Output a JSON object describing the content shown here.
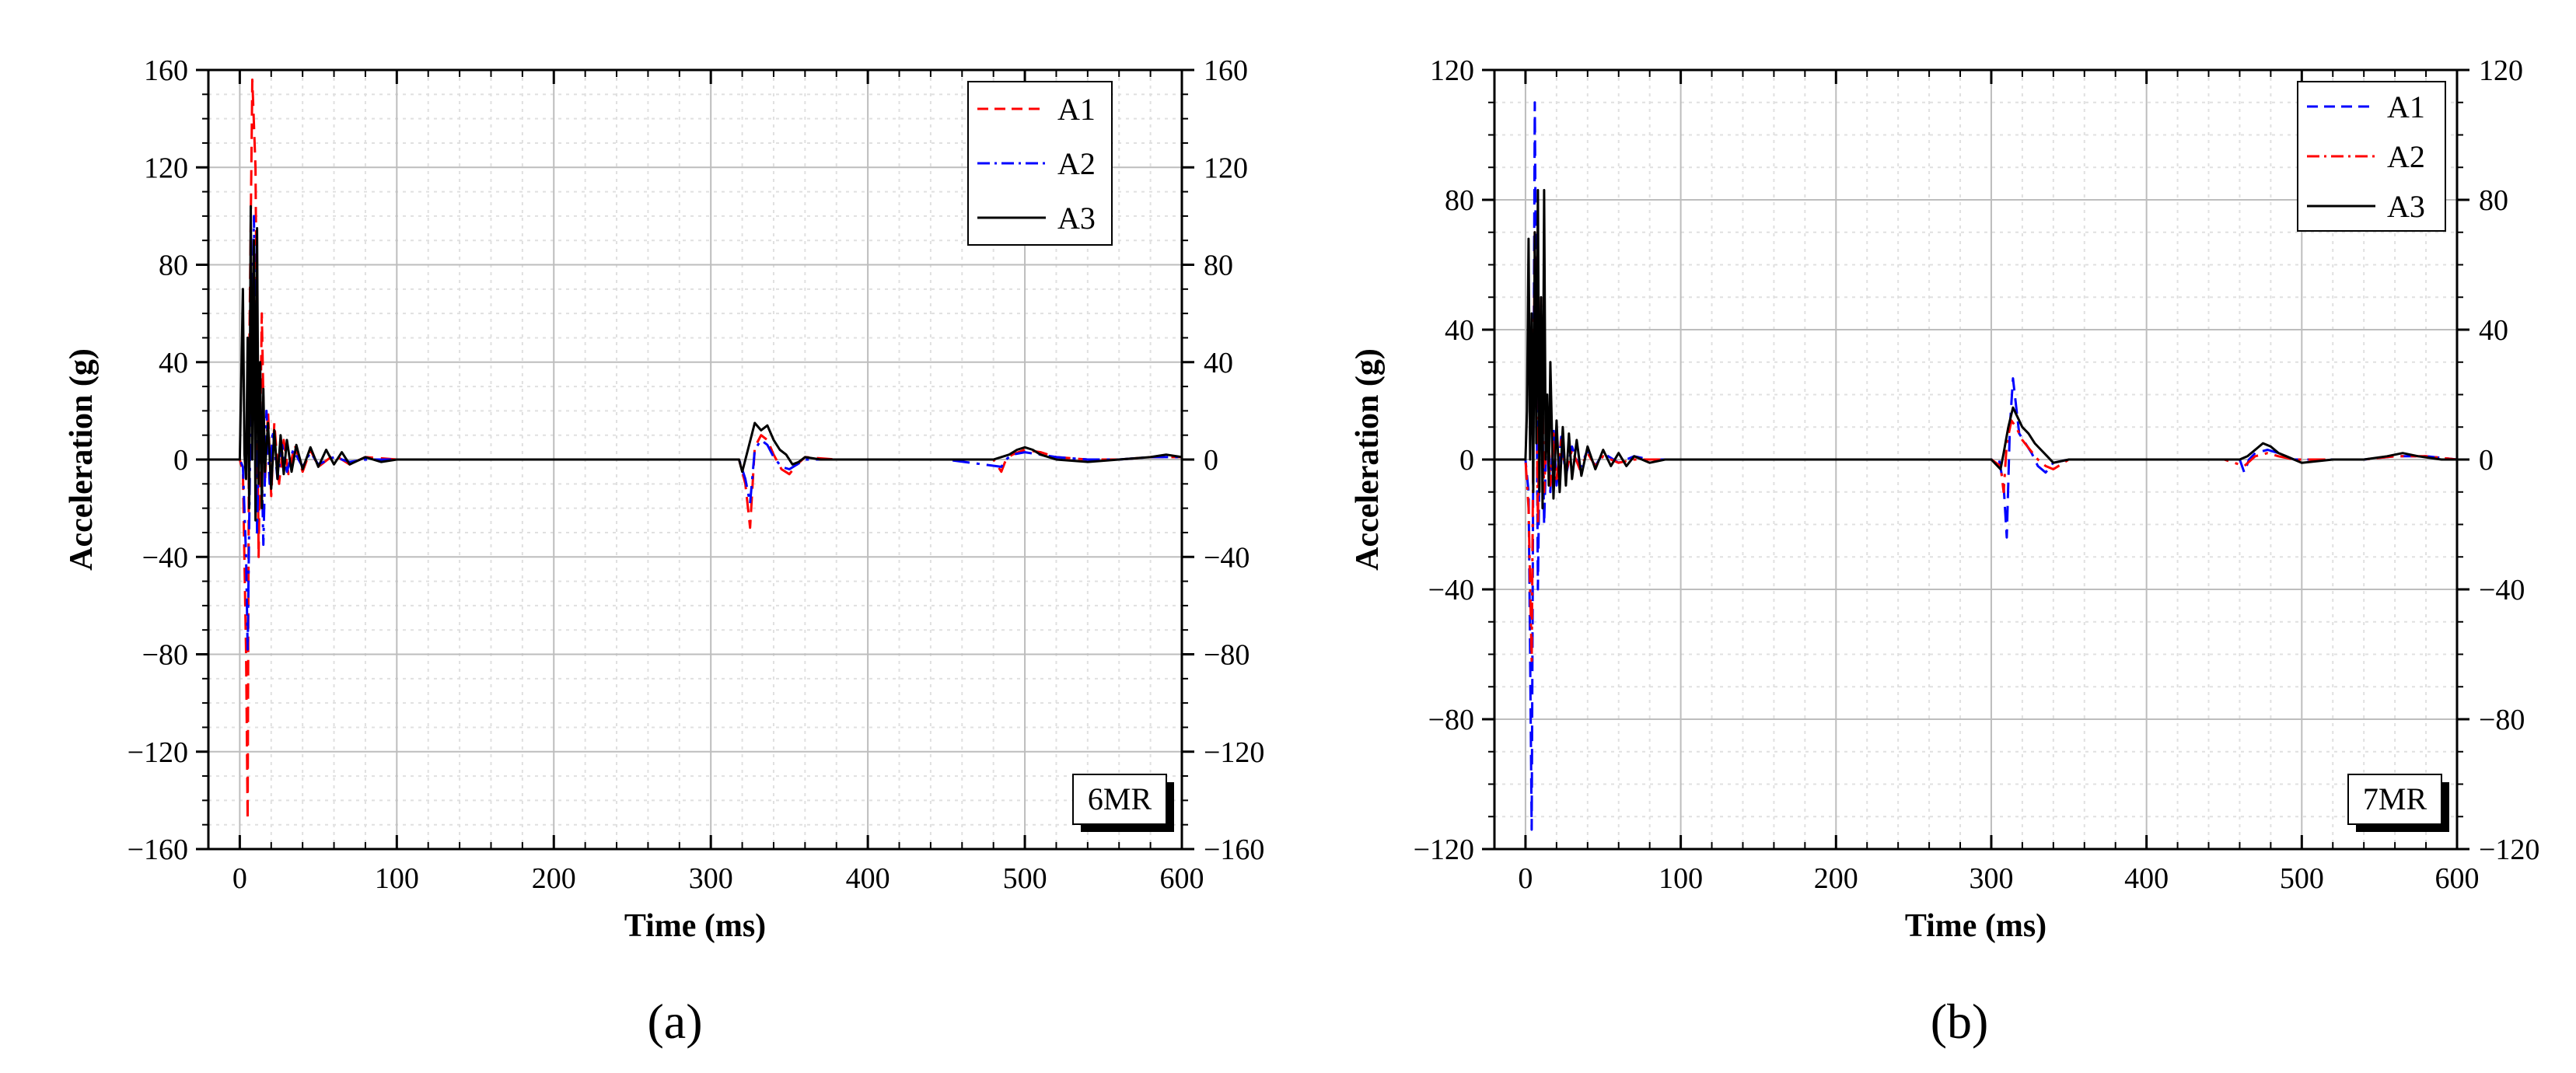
{
  "chart_data": [
    {
      "panel": "a",
      "caption": "(a)",
      "type": "line",
      "xlabel": "Time (ms)",
      "ylabel": "Acceleration (g)",
      "xlim": [
        -20,
        600
      ],
      "ylim": [
        -160,
        160
      ],
      "xticks": [
        0,
        100,
        200,
        300,
        400,
        500,
        600
      ],
      "yticks": [
        -160,
        -120,
        -80,
        -40,
        0,
        40,
        80,
        120,
        160
      ],
      "ytick_labels": [
        "−160",
        "−120",
        "−80",
        "−40",
        "0",
        "40",
        "80",
        "120",
        "160"
      ],
      "grid": true,
      "legend_position": "top-right",
      "tag": "6MR",
      "series": [
        {
          "name": "A1",
          "color": "#ff0000",
          "style": "dashed",
          "x": [
            -20,
            0,
            2,
            4,
            5,
            6,
            8,
            10,
            12,
            14,
            16,
            18,
            20,
            22,
            25,
            28,
            31,
            35,
            40,
            45,
            50,
            60,
            70,
            80,
            100,
            150,
            200,
            250,
            300,
            318,
            322,
            325,
            328,
            332,
            336,
            340,
            345,
            350,
            355,
            360,
            380,
            400,
            450,
            480,
            485,
            488,
            492,
            500,
            510,
            520,
            540,
            560,
            580,
            600
          ],
          "y": [
            0,
            0,
            -5,
            -80,
            -148,
            40,
            156,
            120,
            -40,
            60,
            -10,
            20,
            -15,
            15,
            -10,
            8,
            -6,
            6,
            -5,
            4,
            -3,
            2,
            -2,
            1,
            0,
            0,
            0,
            0,
            0,
            0,
            -10,
            -28,
            5,
            10,
            8,
            2,
            -4,
            -6,
            -2,
            1,
            0,
            0,
            0,
            0,
            -5,
            0,
            2,
            4,
            3,
            1,
            0,
            0,
            1,
            1
          ]
        },
        {
          "name": "A2",
          "color": "#0000ff",
          "style": "dashdot",
          "x": [
            -20,
            0,
            2,
            4,
            5,
            7,
            9,
            11,
            13,
            15,
            17,
            19,
            21,
            24,
            27,
            30,
            34,
            40,
            45,
            50,
            60,
            70,
            80,
            100,
            150,
            200,
            250,
            300,
            318,
            322,
            325,
            328,
            332,
            336,
            340,
            345,
            350,
            360,
            380,
            400,
            450,
            485,
            488,
            492,
            500,
            510,
            520,
            540,
            560,
            580,
            600
          ],
          "y": [
            0,
            0,
            -3,
            -40,
            -78,
            25,
            100,
            -30,
            30,
            -35,
            20,
            -10,
            12,
            -8,
            6,
            -5,
            4,
            -3,
            3,
            -2,
            1,
            -1,
            0,
            0,
            0,
            0,
            0,
            0,
            0,
            -8,
            -18,
            4,
            8,
            6,
            1,
            -3,
            -4,
            0,
            0,
            0,
            0,
            -3,
            0,
            2,
            3,
            2,
            1,
            0,
            0,
            1,
            1
          ]
        },
        {
          "name": "A3",
          "color": "#000000",
          "style": "solid",
          "x": [
            -20,
            0,
            2,
            3,
            4,
            5,
            6,
            7,
            8,
            9,
            10,
            11,
            12,
            13,
            14,
            15,
            16,
            18,
            20,
            22,
            24,
            26,
            28,
            30,
            33,
            36,
            40,
            45,
            50,
            55,
            60,
            65,
            70,
            80,
            90,
            100,
            150,
            200,
            250,
            300,
            318,
            320,
            324,
            328,
            332,
            336,
            340,
            344,
            348,
            352,
            356,
            360,
            370,
            380,
            400,
            440,
            480,
            490,
            495,
            500,
            505,
            510,
            520,
            540,
            560,
            580,
            590,
            600
          ],
          "y": [
            0,
            0,
            70,
            2,
            -8,
            50,
            -20,
            104,
            0,
            90,
            -25,
            95,
            -10,
            40,
            -20,
            29,
            -5,
            15,
            -12,
            12,
            -8,
            10,
            -6,
            8,
            -5,
            6,
            -4,
            5,
            -3,
            4,
            -2,
            3,
            -2,
            1,
            -1,
            0,
            0,
            0,
            0,
            0,
            0,
            -5,
            5,
            15,
            12,
            14,
            8,
            4,
            2,
            -2,
            -1,
            1,
            0,
            0,
            0,
            0,
            0,
            2,
            4,
            5,
            4,
            2,
            0,
            -1,
            0,
            1,
            2,
            1
          ]
        }
      ]
    },
    {
      "panel": "b",
      "caption": "(b)",
      "type": "line",
      "xlabel": "Time (ms)",
      "ylabel": "Acceleration (g)",
      "xlim": [
        -20,
        600
      ],
      "ylim": [
        -120,
        120
      ],
      "xticks": [
        0,
        100,
        200,
        300,
        400,
        500,
        600
      ],
      "yticks": [
        -120,
        -80,
        -40,
        0,
        40,
        80,
        120
      ],
      "ytick_labels": [
        "−120",
        "−80",
        "−40",
        "0",
        "40",
        "80",
        "120"
      ],
      "grid": true,
      "legend_position": "top-right",
      "tag": "7MR",
      "series": [
        {
          "name": "A1",
          "color": "#0000ff",
          "style": "dashed",
          "x": [
            -20,
            0,
            2,
            3,
            4,
            6,
            8,
            10,
            12,
            14,
            16,
            18,
            20,
            23,
            26,
            30,
            35,
            40,
            45,
            50,
            60,
            70,
            80,
            100,
            150,
            200,
            250,
            300,
            305,
            308,
            310,
            312,
            314,
            318,
            322,
            326,
            330,
            335,
            340,
            350,
            400,
            450,
            460,
            463,
            466,
            470,
            478,
            485,
            495,
            520,
            540,
            560,
            580,
            600
          ],
          "y": [
            0,
            0,
            -10,
            -60,
            -114,
            110,
            -40,
            40,
            -20,
            15,
            -10,
            10,
            -8,
            7,
            -5,
            4,
            -3,
            3,
            -2,
            2,
            -1,
            1,
            0,
            0,
            0,
            0,
            0,
            0,
            0,
            -8,
            -24,
            10,
            25,
            8,
            5,
            2,
            -2,
            -4,
            -1,
            0,
            0,
            0,
            0,
            -4,
            0,
            2,
            3,
            2,
            0,
            0,
            0,
            1,
            1,
            0
          ]
        },
        {
          "name": "A2",
          "color": "#ff0000",
          "style": "dashdot",
          "x": [
            -20,
            0,
            2,
            4,
            6,
            8,
            10,
            12,
            14,
            16,
            18,
            20,
            23,
            26,
            30,
            35,
            40,
            45,
            50,
            60,
            70,
            80,
            100,
            150,
            200,
            250,
            300,
            306,
            308,
            310,
            313,
            316,
            320,
            325,
            330,
            335,
            340,
            350,
            400,
            450,
            463,
            470,
            478,
            485,
            495,
            520,
            540,
            560,
            580,
            600
          ],
          "y": [
            0,
            0,
            -15,
            -62,
            70,
            -20,
            50,
            -10,
            12,
            -8,
            8,
            -6,
            6,
            -4,
            3,
            -3,
            2,
            -2,
            1,
            -1,
            0,
            0,
            0,
            0,
            0,
            0,
            0,
            -2,
            -10,
            5,
            12,
            10,
            6,
            3,
            0,
            -2,
            -3,
            0,
            0,
            0,
            -2,
            1,
            2,
            1,
            0,
            0,
            0,
            1,
            1,
            0
          ]
        },
        {
          "name": "A3",
          "color": "#000000",
          "style": "solid",
          "x": [
            -20,
            0,
            1,
            2,
            3,
            4,
            5,
            6,
            7,
            8,
            9,
            10,
            11,
            12,
            13,
            14,
            15,
            16,
            18,
            20,
            22,
            24,
            26,
            28,
            30,
            33,
            36,
            40,
            45,
            50,
            55,
            60,
            65,
            70,
            80,
            90,
            100,
            150,
            200,
            250,
            300,
            306,
            308,
            311,
            314,
            317,
            320,
            324,
            328,
            332,
            336,
            340,
            350,
            370,
            400,
            440,
            460,
            465,
            470,
            475,
            480,
            485,
            490,
            500,
            520,
            540,
            555,
            565,
            575,
            590,
            600
          ],
          "y": [
            0,
            0,
            15,
            68,
            0,
            45,
            -10,
            70,
            5,
            83,
            -10,
            50,
            -15,
            83,
            0,
            20,
            -8,
            30,
            -12,
            12,
            -10,
            10,
            -8,
            8,
            -6,
            6,
            -5,
            4,
            -3,
            3,
            -2,
            2,
            -2,
            1,
            -1,
            0,
            0,
            0,
            0,
            0,
            0,
            -3,
            2,
            10,
            16,
            13,
            10,
            8,
            5,
            3,
            1,
            -1,
            0,
            0,
            0,
            0,
            0,
            1,
            3,
            5,
            4,
            2,
            1,
            -1,
            0,
            0,
            1,
            2,
            1,
            0,
            0
          ]
        }
      ]
    }
  ]
}
